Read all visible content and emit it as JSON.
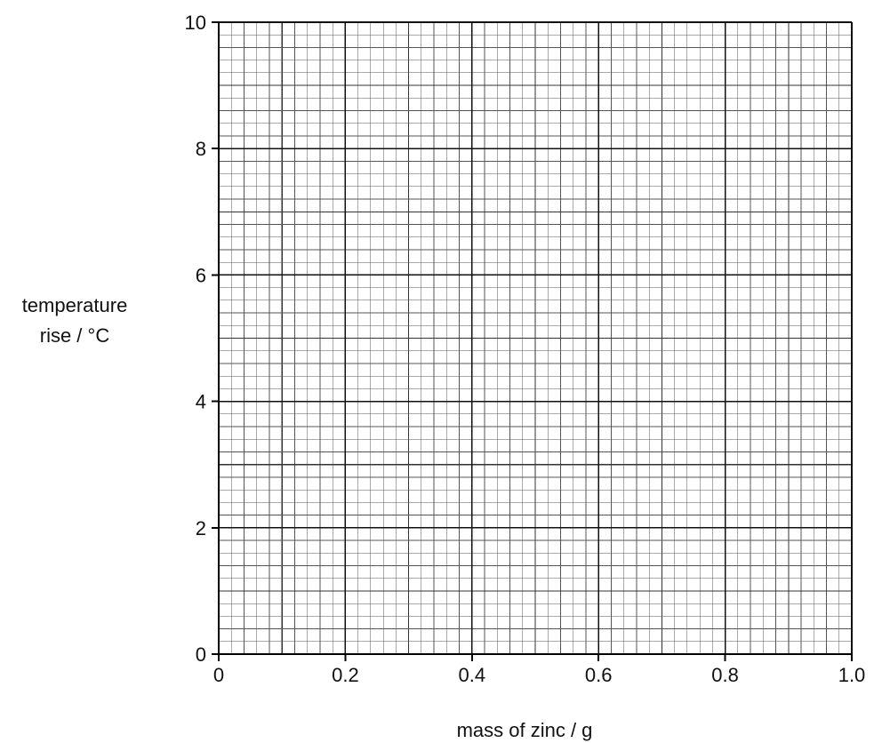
{
  "chart_data": {
    "type": "scatter",
    "title": "",
    "xlabel": "mass of zinc / g",
    "ylabel_lines": [
      "temperature",
      "rise / °C"
    ],
    "xlim": [
      0,
      1.0
    ],
    "ylim": [
      0,
      10
    ],
    "x_ticks": [
      0,
      0.2,
      0.4,
      0.6,
      0.8,
      1.0
    ],
    "x_tick_labels": [
      "0",
      "0.2",
      "0.4",
      "0.6",
      "0.8",
      "1.0"
    ],
    "y_ticks": [
      0,
      2,
      4,
      6,
      8,
      10
    ],
    "y_tick_labels": [
      "0",
      "2",
      "4",
      "6",
      "8",
      "10"
    ],
    "grid": true,
    "series": []
  }
}
